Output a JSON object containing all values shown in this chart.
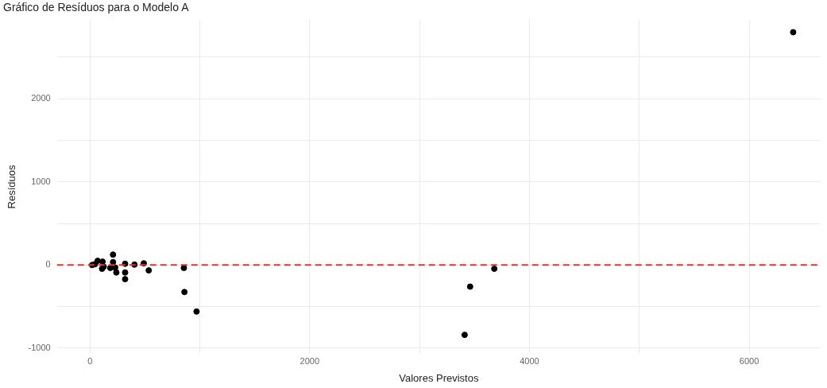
{
  "chart_data": {
    "type": "scatter",
    "title": "Gráfico de Resíduos para o Modelo A",
    "xlabel": "Valores Previstos",
    "ylabel": "Resíduos",
    "series": [
      {
        "color": "#000000",
        "x": [
          20,
          45,
          70,
          110,
          115,
          125,
          185,
          210,
          210,
          230,
          240,
          320,
          320,
          320,
          405,
          490,
          535,
          855,
          860,
          970,
          3410,
          3460,
          3680,
          6400
        ],
        "values": [
          0,
          10,
          50,
          -45,
          40,
          -20,
          -35,
          125,
          35,
          -30,
          -90,
          15,
          -90,
          -170,
          5,
          20,
          -65,
          -35,
          -325,
          -560,
          -840,
          -260,
          -45,
          2800
        ]
      }
    ],
    "xlim": [
      -300,
      6650
    ],
    "ylim": [
      -1070,
      2950
    ],
    "xticks": [
      0,
      {
        "value": 1000,
        "label": null
      },
      2000,
      {
        "value": 3000,
        "label": null
      },
      4000,
      {
        "value": 5000,
        "label": null
      },
      6000
    ],
    "yticks": [
      -1000,
      {
        "value": -500,
        "label": null
      },
      0,
      {
        "value": 500,
        "label": null
      },
      1000,
      {
        "value": 1500,
        "label": null
      },
      2000,
      {
        "value": 2500,
        "label": null
      }
    ],
    "ref_lines": [
      {
        "axis": "y",
        "value": 0,
        "color": "#e8332b",
        "line_style": "dashed"
      }
    ],
    "grid": true,
    "marker": "circle",
    "legend": false
  }
}
